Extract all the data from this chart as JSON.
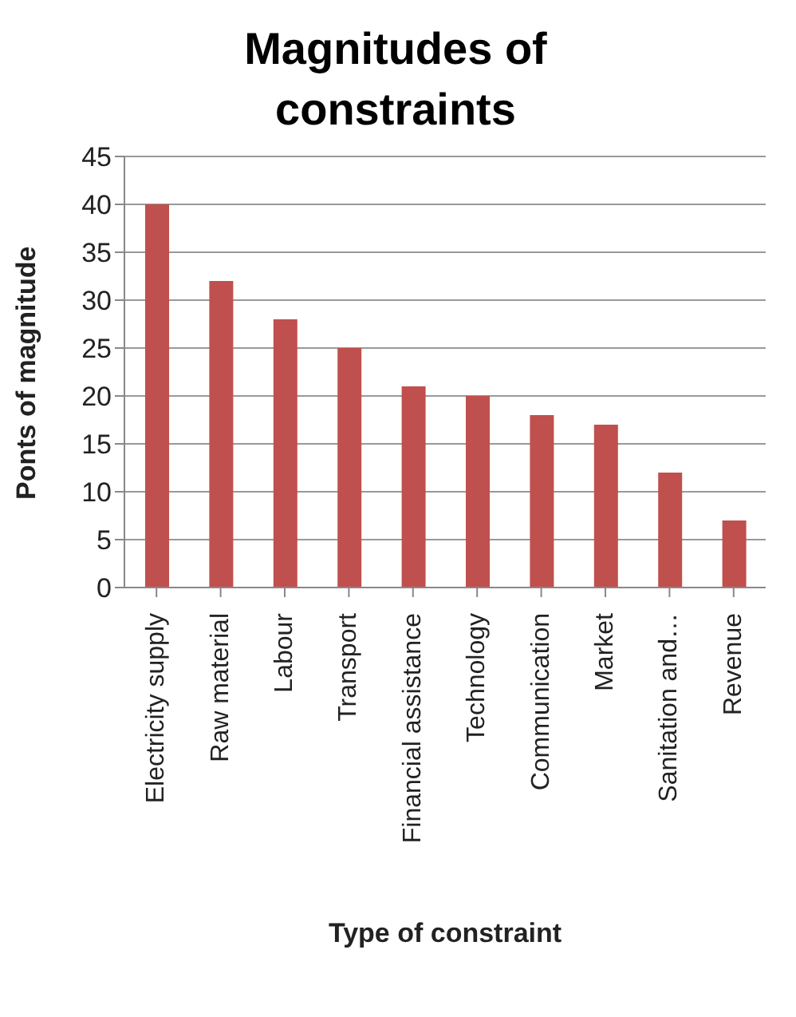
{
  "chart_data": {
    "type": "bar",
    "title": "Magnitudes of constraints",
    "xlabel": "Type of constraint",
    "ylabel": "Ponts of magnitude",
    "categories": [
      "Electricity supply",
      "Raw material",
      "Labour",
      "Transport",
      "Financial assistance",
      "Technology",
      "Communication",
      "Market",
      "Sanitation and…",
      "Revenue"
    ],
    "series": [
      {
        "color": "#c0504d",
        "values": [
          40,
          32,
          28,
          25,
          21,
          20,
          18,
          17,
          12,
          7
        ]
      }
    ],
    "ylim": [
      0,
      45
    ],
    "yticks": [
      0,
      5,
      10,
      15,
      20,
      25,
      30,
      35,
      40,
      45
    ],
    "grid": "y",
    "legend": false
  }
}
